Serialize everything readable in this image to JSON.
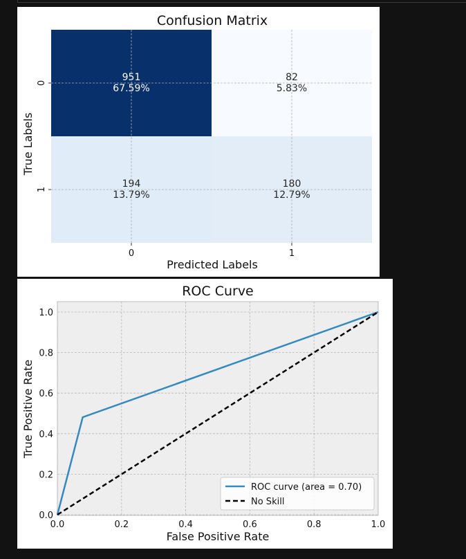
{
  "chart_data": [
    {
      "type": "heatmap",
      "title": "Confusion Matrix",
      "xlabel": "Predicted Labels",
      "ylabel": "True Labels",
      "x_ticks": [
        "0",
        "1"
      ],
      "y_ticks": [
        "0",
        "1"
      ],
      "cells": [
        [
          {
            "count": "951",
            "percent": "67.59%",
            "value": 951,
            "color": "#08306b",
            "text_color": "#ffffff"
          },
          {
            "count": "82",
            "percent": "5.83%",
            "value": 82,
            "color": "#f7fbff",
            "text_color": "#262626"
          }
        ],
        [
          {
            "count": "194",
            "percent": "13.79%",
            "value": 194,
            "color": "#e0ecf8",
            "text_color": "#262626"
          },
          {
            "count": "180",
            "percent": "12.79%",
            "value": 180,
            "color": "#e2edf8",
            "text_color": "#262626"
          }
        ]
      ],
      "colormap": "Blues",
      "grid": true
    },
    {
      "type": "line",
      "title": "ROC Curve",
      "xlabel": "False Positive Rate",
      "ylabel": "True Positive Rate",
      "xlim": [
        0.0,
        1.0
      ],
      "ylim": [
        0.0,
        1.0
      ],
      "x_ticks": [
        "0.0",
        "0.2",
        "0.4",
        "0.6",
        "0.8",
        "1.0"
      ],
      "y_ticks": [
        "0.0",
        "0.2",
        "0.4",
        "0.6",
        "0.8",
        "1.0"
      ],
      "grid": true,
      "legend_position": "lower-right",
      "series": [
        {
          "name": "ROC curve (area = 0.70)",
          "color": "#348abd",
          "style": "solid",
          "x": [
            0.0,
            0.079,
            1.0
          ],
          "y": [
            0.0,
            0.481,
            1.0
          ]
        },
        {
          "name": "No Skill",
          "color": "#000000",
          "style": "dashed",
          "x": [
            0.0,
            1.0
          ],
          "y": [
            0.0,
            1.0
          ]
        }
      ]
    }
  ]
}
